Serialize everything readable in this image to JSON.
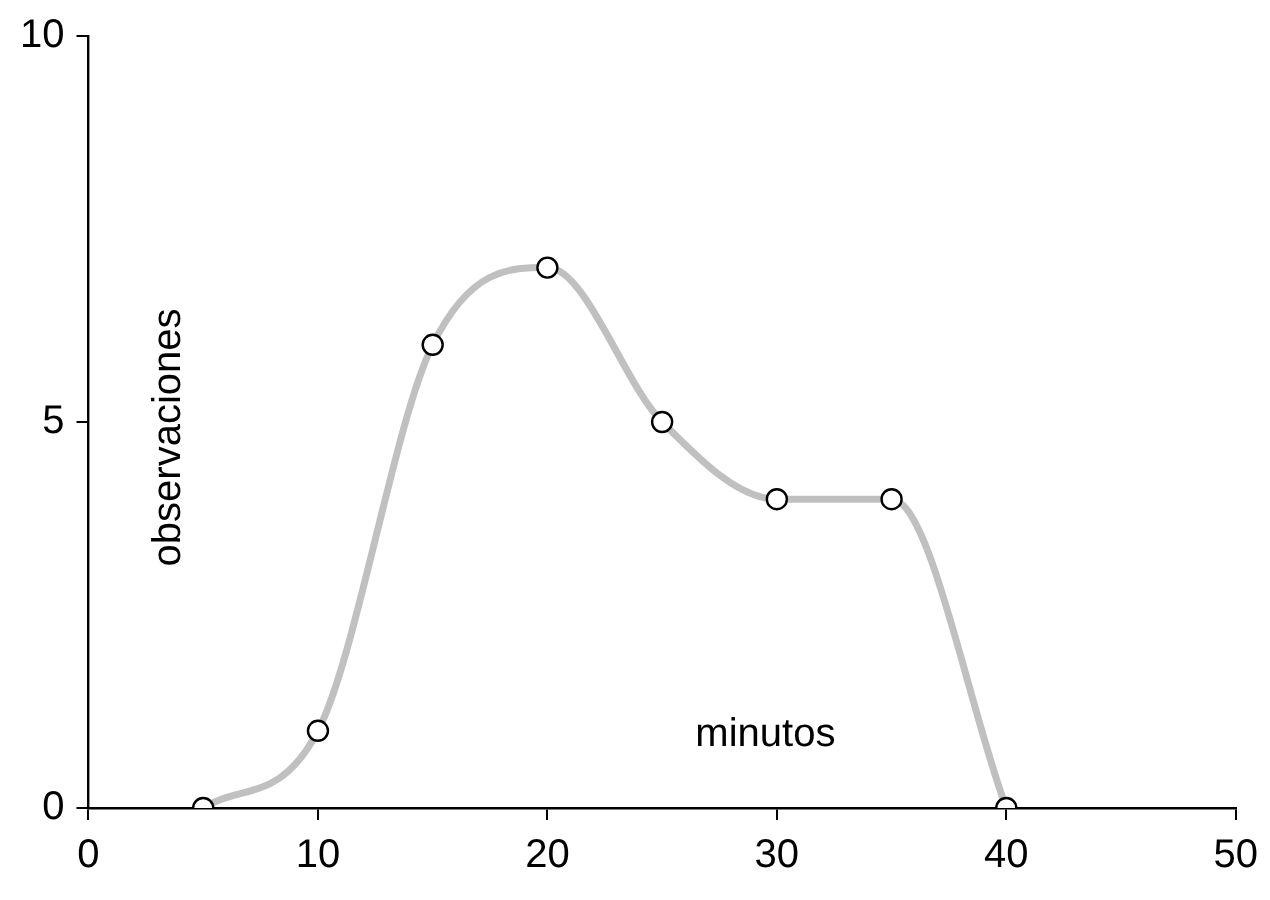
{
  "chart_data": {
    "type": "line",
    "xlabel": "minutos",
    "ylabel": "observaciones",
    "x": [
      5,
      10,
      15,
      20,
      25,
      30,
      35,
      40
    ],
    "series": [
      {
        "color": "#c0c0c0",
        "values": [
          0,
          1,
          6,
          7,
          5,
          4,
          4,
          0
        ]
      }
    ],
    "xlim": [
      0,
      50
    ],
    "ylim": [
      0,
      10
    ],
    "xticks": [
      0,
      10,
      20,
      30,
      40,
      50
    ],
    "yticks": [
      0,
      5,
      10
    ],
    "marker": "circle"
  }
}
